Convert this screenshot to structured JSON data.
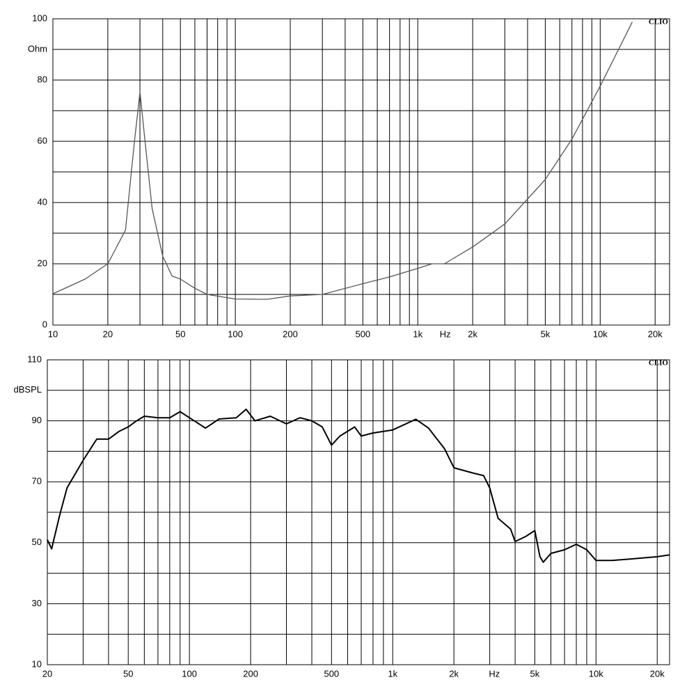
{
  "chart_data": [
    {
      "type": "line",
      "log_x": true,
      "color": "#555555",
      "annotation": "CLIO",
      "xlabel": "Hz",
      "xlim": [
        10,
        24000
      ],
      "ylim": [
        0,
        100
      ],
      "xticks": [
        10,
        20,
        50,
        100,
        200,
        500,
        {
          "value": 1000,
          "label": "1k"
        },
        {
          "value": 2000,
          "label": "2k"
        },
        {
          "value": 5000,
          "label": "5k"
        },
        {
          "value": 10000,
          "label": "10k"
        },
        {
          "value": 20000,
          "label": "20k"
        }
      ],
      "minor_xticks": [
        30,
        40,
        60,
        70,
        80,
        90,
        300,
        400,
        600,
        700,
        800,
        900,
        3000,
        4000,
        6000,
        7000,
        8000,
        9000
      ],
      "yticks": [
        0,
        20,
        40,
        60,
        80,
        {
          "value": 90,
          "label": "Ohm"
        },
        100
      ],
      "minor_yticks": [
        10,
        30,
        50,
        70
      ],
      "x": [
        10,
        15,
        20,
        25,
        28,
        30,
        32,
        35,
        40,
        45,
        50,
        60,
        70,
        100,
        150,
        200,
        300,
        500,
        700,
        1000,
        1200,
        1400,
        2000,
        3000,
        5000,
        7000,
        10000,
        15000
      ],
      "values": [
        10.2,
        15,
        20,
        31,
        60,
        76,
        60,
        38,
        22.5,
        16,
        15,
        12,
        10,
        8.5,
        8.4,
        9.5,
        10,
        13.5,
        15.7,
        18.5,
        20,
        20,
        25.5,
        33,
        47.5,
        60.7,
        78,
        99
      ]
    },
    {
      "type": "line",
      "log_x": true,
      "color": "#000000",
      "annotation": "CLIO",
      "xlabel": "Hz",
      "xlim": [
        20,
        23000
      ],
      "ylim": [
        10,
        110
      ],
      "xticks": [
        20,
        50,
        100,
        200,
        500,
        {
          "value": 1000,
          "label": "1k"
        },
        {
          "value": 2000,
          "label": "2k"
        },
        {
          "value": 5000,
          "label": "5k"
        },
        {
          "value": 10000,
          "label": "10k"
        },
        {
          "value": 20000,
          "label": "20k"
        }
      ],
      "minor_xticks": [
        30,
        40,
        60,
        70,
        80,
        90,
        300,
        400,
        600,
        700,
        800,
        900,
        3000,
        4000,
        6000,
        7000,
        8000,
        9000
      ],
      "yticks": [
        10,
        30,
        50,
        70,
        90,
        {
          "value": 100,
          "label": "dBSPL"
        },
        110
      ],
      "minor_yticks": [
        20,
        40,
        60,
        80
      ],
      "x": [
        20,
        21,
        23,
        25,
        30,
        35,
        40,
        45,
        50,
        55,
        60,
        70,
        80,
        90,
        100,
        120,
        140,
        170,
        190,
        210,
        250,
        300,
        350,
        400,
        450,
        500,
        550,
        650,
        700,
        800,
        1000,
        1300,
        1500,
        1800,
        2000,
        2500,
        2800,
        3000,
        3300,
        3800,
        4000,
        4500,
        5000,
        5300,
        5500,
        6000,
        7000,
        8000,
        9000,
        10000,
        12000,
        15000,
        20000,
        23000
      ],
      "values": [
        51,
        48,
        59,
        68,
        77,
        84,
        84,
        86.5,
        88,
        90,
        91.5,
        91,
        91,
        93,
        91,
        87.6,
        90.6,
        91,
        93.8,
        90,
        91.5,
        89,
        91,
        90,
        88,
        82,
        85,
        88,
        85,
        86,
        87,
        90.5,
        87.6,
        80.8,
        74.6,
        72.8,
        72,
        68,
        58,
        54.5,
        50.4,
        52,
        54,
        45.4,
        43.6,
        46.5,
        47.7,
        49.5,
        47.7,
        44.2,
        44.2,
        44.7,
        45.4,
        46
      ]
    }
  ]
}
